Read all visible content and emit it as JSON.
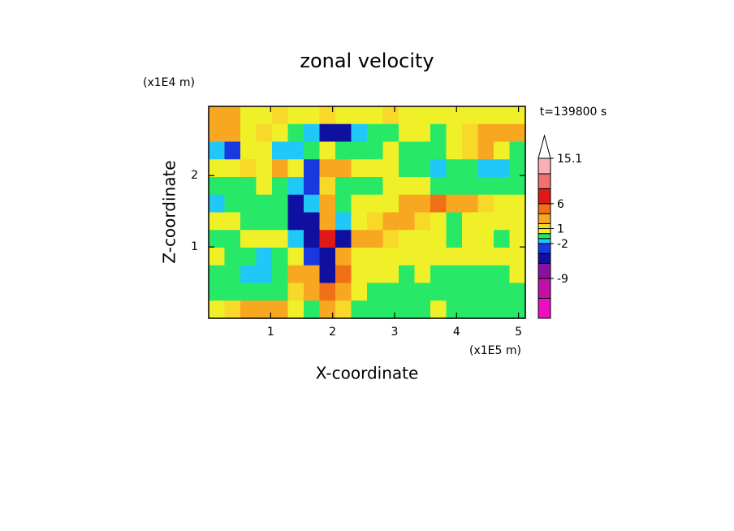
{
  "chart_data": {
    "type": "contour",
    "title": "zonal velocity",
    "x_label": "X-coordinate",
    "y_label": "Z-coordinate",
    "x_unit": "(x1E5 m)",
    "y_unit": "(x1E4 m)",
    "time_label": "t=139800 s",
    "xlim": [
      0,
      5.11
    ],
    "ylim": [
      0,
      2.97
    ],
    "xticks": [
      1,
      2,
      3,
      4,
      5
    ],
    "yticks": [
      1,
      2
    ],
    "z": [
      [
        2.5,
        2.5,
        0.5,
        0.5,
        1.5,
        0.5,
        0.5,
        1.5,
        0.5,
        0.5,
        0.5,
        1.5,
        0.5,
        0.5,
        0.5,
        0.5,
        0.5,
        0.5,
        0.5,
        0.5
      ],
      [
        3,
        2.5,
        0.5,
        1.5,
        0.5,
        -0.5,
        -1.5,
        -5,
        -5,
        -1.5,
        -0.5,
        -0.5,
        0.5,
        0.5,
        -0.5,
        0.5,
        1.5,
        2.5,
        3,
        2.5
      ],
      [
        -1.5,
        -4,
        0.5,
        0.5,
        -1.5,
        -1.5,
        -0.5,
        0.5,
        -0.5,
        -0.5,
        -0.5,
        0.5,
        -0.5,
        -0.5,
        -0.5,
        0.5,
        1.5,
        2.5,
        0.5,
        -0.5
      ],
      [
        0.5,
        0.5,
        1.5,
        0.5,
        2.5,
        0.5,
        -4,
        3,
        2.5,
        0.5,
        0.5,
        0.5,
        -0.5,
        -0.5,
        -1.5,
        -0.5,
        -0.5,
        -1.5,
        -1.5,
        -0.5
      ],
      [
        -0.5,
        -0.5,
        -0.5,
        0.5,
        -0.5,
        -1.5,
        -3,
        1.5,
        -0.5,
        -0.5,
        -0.5,
        0.5,
        0.5,
        0.5,
        -0.5,
        -0.5,
        -0.5,
        -0.5,
        -0.5,
        -0.5
      ],
      [
        -1.5,
        -0.5,
        -0.5,
        -0.5,
        -0.5,
        -5,
        -1.5,
        2.5,
        -0.5,
        0.5,
        0.5,
        0.5,
        2.5,
        2.5,
        4,
        3,
        2.5,
        1.5,
        0.5,
        0.5
      ],
      [
        0.5,
        0.5,
        -0.5,
        -0.5,
        -0.5,
        -6,
        -5,
        3,
        -1.5,
        0.5,
        1.5,
        2.5,
        2.5,
        1.5,
        0.5,
        -0.5,
        0.5,
        0.5,
        0.5,
        0.5
      ],
      [
        -0.5,
        -0.5,
        0.5,
        0.5,
        0.5,
        -1.5,
        -6,
        7,
        -5,
        2.5,
        2.5,
        1.5,
        0.5,
        0.5,
        0.5,
        -0.5,
        0.5,
        0.5,
        -0.5,
        0.5
      ],
      [
        0.5,
        -0.5,
        -0.5,
        -1.5,
        -0.5,
        0.5,
        -3,
        -6,
        3,
        0.5,
        0.5,
        0.5,
        0.5,
        0.5,
        0.5,
        0.5,
        0.5,
        0.5,
        0.5,
        0.5
      ],
      [
        -0.5,
        -0.5,
        -1.5,
        -1.5,
        -0.5,
        2.5,
        3,
        -6,
        5,
        0.5,
        0.5,
        0.5,
        -0.5,
        0.5,
        -0.5,
        -0.5,
        -0.5,
        -0.5,
        -0.5,
        0.5
      ],
      [
        -0.5,
        -0.5,
        -0.5,
        -0.5,
        -0.5,
        1.5,
        3,
        4,
        2.5,
        0.5,
        -0.5,
        -0.5,
        -0.5,
        -0.5,
        -0.5,
        -0.5,
        -0.5,
        -0.5,
        -0.5,
        -0.5
      ],
      [
        0.5,
        1.5,
        2.5,
        2.5,
        2.5,
        0.5,
        -0.5,
        2.5,
        1.5,
        -0.5,
        -0.5,
        -0.5,
        -0.5,
        -0.5,
        0.5,
        -0.5,
        -0.5,
        -0.5,
        -0.5,
        -0.5
      ]
    ],
    "levels": [
      -17,
      -13,
      -9,
      -6,
      -4,
      -2,
      -1,
      0,
      1,
      2,
      4,
      6,
      9,
      12,
      15.1
    ],
    "colors": [
      "#f00cc0",
      "#c010a8",
      "#8c10a0",
      "#1010a0",
      "#1838e0",
      "#20c8f8",
      "#28e868",
      "#f0f028",
      "#f8d828",
      "#f8a820",
      "#f07018",
      "#e01818",
      "#f07070",
      "#f8b0b8"
    ],
    "extend_color": "#ffffff",
    "colorbar_ticks": [
      15.1,
      6,
      1,
      -2,
      -9
    ]
  }
}
